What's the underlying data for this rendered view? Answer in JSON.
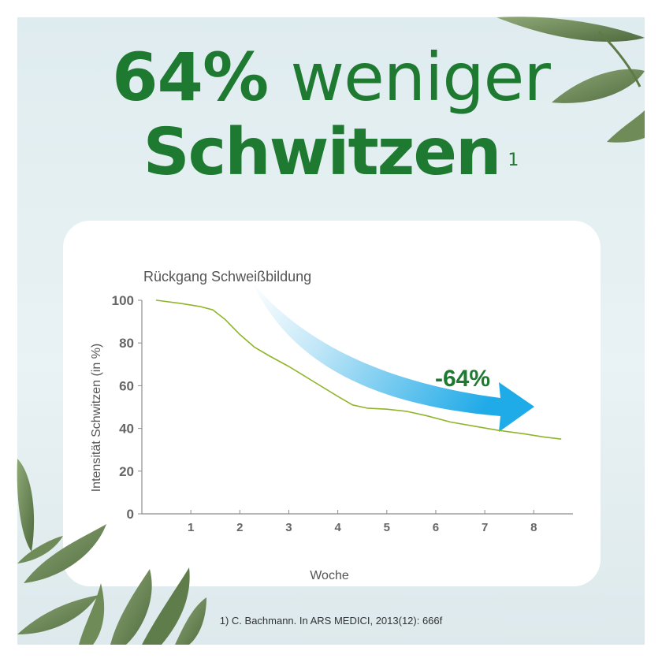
{
  "headline": {
    "line1_bold": "64%",
    "line1_light": "weniger",
    "line2": "Schwitzen",
    "footnote_ref": "1"
  },
  "footnote": "1) C. Bachmann. In ARS MEDICI, 2013(12): 666f",
  "chart_data": {
    "type": "line",
    "title": "Rückgang Schweißbildung",
    "xlabel": "Woche",
    "ylabel": "Intensität Schwitzen (in %)",
    "xlim": [
      0,
      8.8
    ],
    "ylim": [
      0,
      100
    ],
    "xticks": [
      1,
      2,
      3,
      4,
      5,
      6,
      7,
      8
    ],
    "yticks": [
      0,
      20,
      40,
      60,
      80,
      100
    ],
    "grid": false,
    "series": [
      {
        "x": [
          0.3,
          0.8,
          1.2,
          1.45,
          1.7,
          2.0,
          2.3,
          2.6,
          3.0,
          3.5,
          4.0,
          4.3,
          4.6,
          5.0,
          5.4,
          5.8,
          6.3,
          6.8,
          7.3,
          7.8,
          8.2,
          8.55
        ],
        "values": [
          100,
          98.5,
          97,
          95.5,
          91,
          84,
          78,
          74,
          69,
          62,
          55,
          51,
          49.5,
          49,
          48,
          46,
          43,
          41,
          39,
          37.5,
          36,
          35
        ]
      }
    ],
    "annotation": {
      "text": "-64%",
      "color": "#1e7a30"
    },
    "colors": {
      "line": "#8fb52a",
      "axis": "#8c8c8c",
      "tick_label": "#666666",
      "arrow": "#2aa9e6"
    }
  }
}
